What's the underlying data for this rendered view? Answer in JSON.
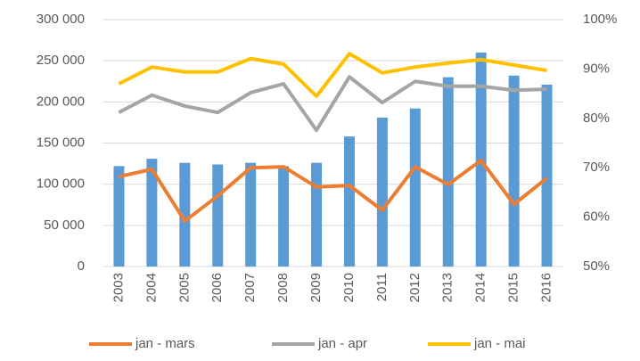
{
  "chart_data": {
    "type": "bar",
    "categories": [
      "2003",
      "2004",
      "2005",
      "2006",
      "2007",
      "2008",
      "2009",
      "2010",
      "2011",
      "2012",
      "2013",
      "2014",
      "2015",
      "2016"
    ],
    "series": [
      {
        "type": "bar",
        "color": "#5b9bd5",
        "values": [
          122000,
          131000,
          126000,
          124000,
          126000,
          122000,
          126000,
          158000,
          181000,
          192000,
          230000,
          260000,
          232000,
          221000
        ]
      },
      {
        "type": "line",
        "name": "jan - mars",
        "color": "#ed7d31",
        "axis": "y2",
        "values": [
          68.2,
          69.7,
          59.2,
          64.3,
          70.0,
          70.2,
          66.1,
          66.4,
          61.4,
          70.2,
          66.6,
          71.5,
          62.6,
          67.9
        ]
      },
      {
        "type": "line",
        "name": "jan - apr",
        "color": "#a5a5a5",
        "axis": "y2",
        "values": [
          81.2,
          84.7,
          82.5,
          81.2,
          85.2,
          87.0,
          77.6,
          88.4,
          83.2,
          87.5,
          86.5,
          86.5,
          85.7,
          85.9
        ]
      },
      {
        "type": "line",
        "name": "jan - mai",
        "color": "#ffc000",
        "axis": "y2",
        "values": [
          87.0,
          90.4,
          89.4,
          89.4,
          92.1,
          91.0,
          84.5,
          93.1,
          89.2,
          90.4,
          91.2,
          91.9,
          90.8,
          89.7
        ]
      }
    ],
    "ylim": [
      0,
      300000
    ],
    "yticks": [
      0,
      {
        "value": 50000,
        "label": "50 000"
      },
      {
        "value": 100000,
        "label": "100 000"
      },
      {
        "value": 150000,
        "label": "150 000"
      },
      {
        "value": 200000,
        "label": "200 000"
      },
      {
        "value": 250000,
        "label": "250 000"
      },
      {
        "value": 300000,
        "label": "300 000"
      }
    ],
    "y2lim": [
      50,
      100
    ],
    "y2ticks": [
      {
        "value": 50,
        "label": "50%"
      },
      {
        "value": 60,
        "label": "60%"
      },
      {
        "value": 70,
        "label": "70%"
      },
      {
        "value": 80,
        "label": "80%"
      },
      {
        "value": 90,
        "label": "90%"
      },
      {
        "value": 100,
        "label": "100%"
      }
    ],
    "grid": true,
    "legend": "bottom"
  }
}
